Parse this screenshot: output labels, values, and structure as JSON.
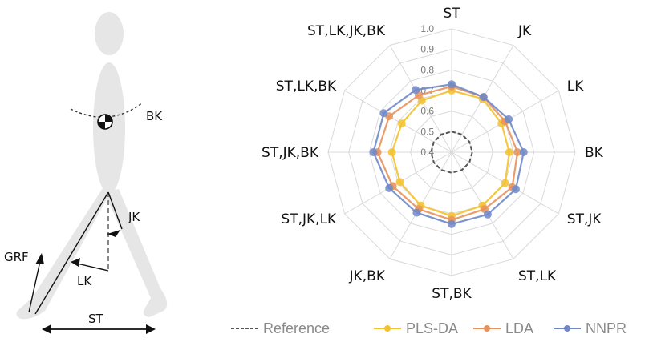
{
  "diagram": {
    "labels": {
      "bk": "BK",
      "jk": "JK",
      "lk": "LK",
      "grf": "GRF",
      "st": "ST"
    }
  },
  "chart_data": {
    "type": "radar",
    "axes": [
      "ST",
      "JK",
      "LK",
      "BK",
      "ST,JK",
      "ST,LK",
      "ST,BK",
      "JK,BK",
      "ST,JK,LK",
      "ST,JK,BK",
      "ST,LK,BK",
      "ST,LK,JK,BK"
    ],
    "rlim": [
      0.4,
      1.0
    ],
    "tick_values": [
      0.4,
      0.5,
      0.6,
      0.7,
      0.8,
      0.9,
      1.0
    ],
    "tick_labels": [
      "0.4",
      "0.5",
      "0.6",
      "0.7",
      "0.8",
      "0.9",
      "1.0"
    ],
    "visible_tick_labels": [
      "0.4",
      "0.5",
      "0.6",
      "0.7",
      "0.8",
      "0.9",
      "1.0"
    ],
    "grid": true,
    "legend_position": "bottom",
    "series": [
      {
        "name": "Reference",
        "color": "#555555",
        "style": "dashed",
        "values": [
          0.5,
          0.5,
          0.5,
          0.5,
          0.5,
          0.5,
          0.5,
          0.5,
          0.5,
          0.5,
          0.5,
          0.5
        ]
      },
      {
        "name": "PLS-DA",
        "color": "#f2c230",
        "style": "solid",
        "values": [
          0.7,
          0.7,
          0.68,
          0.68,
          0.7,
          0.7,
          0.71,
          0.7,
          0.69,
          0.69,
          0.68,
          0.69
        ]
      },
      {
        "name": "LDA",
        "color": "#e8925a",
        "style": "solid",
        "values": [
          0.72,
          0.71,
          0.7,
          0.72,
          0.74,
          0.72,
          0.73,
          0.72,
          0.73,
          0.76,
          0.75,
          0.72
        ]
      },
      {
        "name": "NNPR",
        "color": "#7088c8",
        "style": "solid",
        "values": [
          0.73,
          0.71,
          0.72,
          0.75,
          0.76,
          0.75,
          0.75,
          0.74,
          0.75,
          0.78,
          0.78,
          0.75
        ]
      }
    ]
  }
}
